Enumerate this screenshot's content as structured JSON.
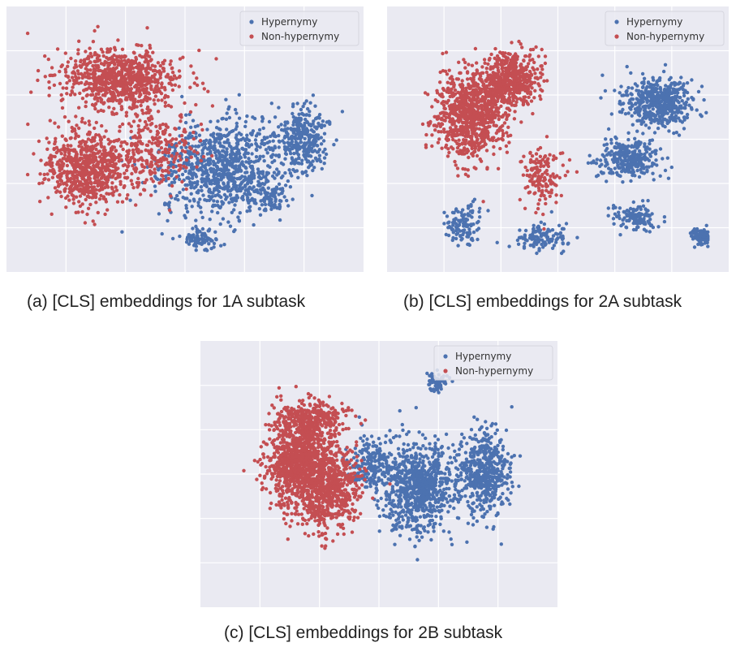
{
  "figure": {
    "panels": [
      {
        "caption": "(a) [CLS] embeddings for 1A subtask"
      },
      {
        "caption": "(b) [CLS] embeddings for 2A subtask"
      },
      {
        "caption": "(c) [CLS] embeddings for 2B subtask"
      }
    ]
  },
  "colors": {
    "hypernymy": "#4c72b0",
    "non_hypernymy": "#c44e52",
    "plot_background": "#eaeaf2",
    "grid": "#ffffff"
  },
  "chart_data": [
    {
      "type": "scatter",
      "title": "",
      "xlabel": "",
      "ylabel": "",
      "grid": true,
      "legend_position": "top-right",
      "series": [
        {
          "name": "Hypernymy",
          "color": "#4c72b0",
          "clusters": [
            {
              "cx": 0.62,
              "cy": 0.62,
              "sx": 0.18,
              "sy": 0.18,
              "n": 900
            },
            {
              "cx": 0.86,
              "cy": 0.5,
              "sx": 0.07,
              "sy": 0.12,
              "n": 300
            },
            {
              "cx": 0.55,
              "cy": 0.91,
              "sx": 0.05,
              "sy": 0.04,
              "n": 80
            },
            {
              "cx": 0.76,
              "cy": 0.74,
              "sx": 0.05,
              "sy": 0.04,
              "n": 60
            }
          ]
        },
        {
          "name": "Non-hypernymy",
          "color": "#c44e52",
          "clusters": [
            {
              "cx": 0.2,
              "cy": 0.62,
              "sx": 0.11,
              "sy": 0.14,
              "n": 700
            },
            {
              "cx": 0.3,
              "cy": 0.25,
              "sx": 0.17,
              "sy": 0.11,
              "n": 800
            },
            {
              "cx": 0.4,
              "cy": 0.55,
              "sx": 0.12,
              "sy": 0.15,
              "n": 300
            }
          ]
        }
      ]
    },
    {
      "type": "scatter",
      "title": "",
      "xlabel": "",
      "ylabel": "",
      "grid": true,
      "legend_position": "top-right",
      "series": [
        {
          "name": "Hypernymy",
          "color": "#4c72b0",
          "clusters": [
            {
              "cx": 0.82,
              "cy": 0.35,
              "sx": 0.1,
              "sy": 0.09,
              "n": 500
            },
            {
              "cx": 0.72,
              "cy": 0.58,
              "sx": 0.09,
              "sy": 0.07,
              "n": 300
            },
            {
              "cx": 0.45,
              "cy": 0.9,
              "sx": 0.08,
              "sy": 0.05,
              "n": 120
            },
            {
              "cx": 0.96,
              "cy": 0.9,
              "sx": 0.03,
              "sy": 0.03,
              "n": 90
            },
            {
              "cx": 0.2,
              "cy": 0.85,
              "sx": 0.06,
              "sy": 0.08,
              "n": 120
            },
            {
              "cx": 0.75,
              "cy": 0.82,
              "sx": 0.06,
              "sy": 0.05,
              "n": 120
            }
          ]
        },
        {
          "name": "Non-hypernymy",
          "color": "#c44e52",
          "clusters": [
            {
              "cx": 0.22,
              "cy": 0.4,
              "sx": 0.1,
              "sy": 0.16,
              "n": 900
            },
            {
              "cx": 0.35,
              "cy": 0.25,
              "sx": 0.08,
              "sy": 0.1,
              "n": 500
            },
            {
              "cx": 0.45,
              "cy": 0.65,
              "sx": 0.06,
              "sy": 0.1,
              "n": 150
            }
          ]
        }
      ]
    },
    {
      "type": "scatter",
      "title": "",
      "xlabel": "",
      "ylabel": "",
      "grid": true,
      "legend_position": "top-right",
      "series": [
        {
          "name": "Hypernymy",
          "color": "#4c72b0",
          "clusters": [
            {
              "cx": 0.62,
              "cy": 0.55,
              "sx": 0.1,
              "sy": 0.17,
              "n": 800
            },
            {
              "cx": 0.82,
              "cy": 0.5,
              "sx": 0.07,
              "sy": 0.16,
              "n": 500
            },
            {
              "cx": 0.68,
              "cy": 0.12,
              "sx": 0.03,
              "sy": 0.04,
              "n": 70
            },
            {
              "cx": 0.48,
              "cy": 0.45,
              "sx": 0.06,
              "sy": 0.1,
              "n": 200
            }
          ]
        },
        {
          "name": "Non-hypernymy",
          "color": "#c44e52",
          "clusters": [
            {
              "cx": 0.25,
              "cy": 0.45,
              "sx": 0.08,
              "sy": 0.17,
              "n": 900
            },
            {
              "cx": 0.35,
              "cy": 0.55,
              "sx": 0.08,
              "sy": 0.17,
              "n": 700
            },
            {
              "cx": 0.3,
              "cy": 0.28,
              "sx": 0.1,
              "sy": 0.08,
              "n": 300
            }
          ]
        }
      ]
    }
  ]
}
